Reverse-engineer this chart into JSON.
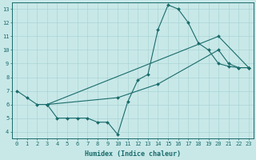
{
  "xlabel": "Humidex (Indice chaleur)",
  "ylabel": "",
  "bg_color": "#c8e8e8",
  "line_color": "#1a6b6b",
  "grid_color": "#aad4d4",
  "xlim": [
    -0.5,
    23.5
  ],
  "ylim": [
    3.5,
    13.5
  ],
  "xticks": [
    0,
    1,
    2,
    3,
    4,
    5,
    6,
    7,
    8,
    9,
    10,
    11,
    12,
    13,
    14,
    15,
    16,
    17,
    18,
    19,
    20,
    21,
    22,
    23
  ],
  "yticks": [
    4,
    5,
    6,
    7,
    8,
    9,
    10,
    11,
    12,
    13
  ],
  "line1_x": [
    0,
    1,
    2,
    3,
    4,
    5,
    6,
    7,
    8,
    9,
    10,
    11,
    12,
    13,
    14,
    15,
    16,
    17,
    18,
    19,
    20,
    21,
    22,
    23
  ],
  "line1_y": [
    7.0,
    6.5,
    6.0,
    6.0,
    5.0,
    5.0,
    5.0,
    5.0,
    4.7,
    4.7,
    3.8,
    6.2,
    7.8,
    8.2,
    11.5,
    13.3,
    13.0,
    12.0,
    10.5,
    10.0,
    9.0,
    8.8,
    8.7,
    8.7
  ],
  "line2_x": [
    3,
    10,
    14,
    20,
    21,
    22,
    23
  ],
  "line2_y": [
    6.0,
    6.5,
    7.5,
    10.0,
    9.0,
    8.7,
    8.7
  ],
  "line3_x": [
    3,
    20,
    23
  ],
  "line3_y": [
    6.0,
    11.0,
    8.7
  ],
  "tick_fontsize": 5,
  "xlabel_fontsize": 6
}
